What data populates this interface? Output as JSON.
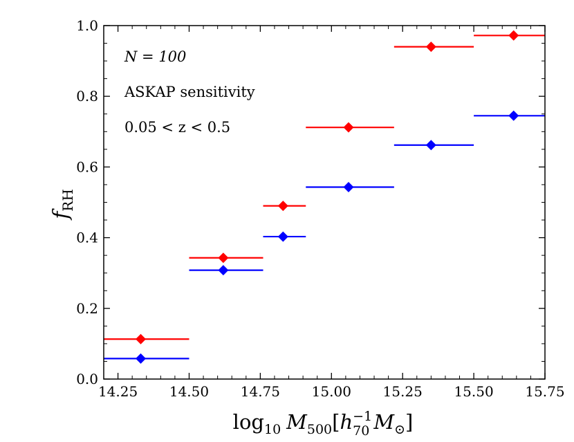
{
  "chart_data": {
    "type": "scatter",
    "xlabel_parts": {
      "prefix": "log",
      "sub": "10",
      "var": "M",
      "var_sub": "500",
      "bracket_open": "[",
      "h": "h",
      "h_sup": "−1",
      "h_sub": "70",
      "m": "M",
      "m_sub": "⊙",
      "bracket_close": "]"
    },
    "ylabel_parts": {
      "main": "f",
      "sub": "RH"
    },
    "xlim": [
      14.2,
      15.75
    ],
    "ylim": [
      0.0,
      1.0
    ],
    "xticks": [
      14.25,
      14.5,
      14.75,
      15.0,
      15.25,
      15.5,
      15.75
    ],
    "xtick_labels": [
      "14.25",
      "14.50",
      "14.75",
      "15.00",
      "15.25",
      "15.50",
      "15.75"
    ],
    "yticks": [
      0.0,
      0.2,
      0.4,
      0.6,
      0.8,
      1.0
    ],
    "ytick_labels": [
      "0.0",
      "0.2",
      "0.4",
      "0.6",
      "0.8",
      "1.0"
    ],
    "annotations": [
      "N = 100",
      "ASKAP sensitivity",
      "0.05 < z < 0.5"
    ],
    "series": [
      {
        "name": "red",
        "color": "#ff0000",
        "marker": "diamond",
        "points": [
          {
            "x": 14.33,
            "y": 0.113,
            "xmin": 14.2,
            "xmax": 14.5
          },
          {
            "x": 14.62,
            "y": 0.343,
            "xmin": 14.5,
            "xmax": 14.76
          },
          {
            "x": 14.83,
            "y": 0.49,
            "xmin": 14.76,
            "xmax": 14.91
          },
          {
            "x": 15.06,
            "y": 0.712,
            "xmin": 14.91,
            "xmax": 15.22
          },
          {
            "x": 15.35,
            "y": 0.94,
            "xmin": 15.22,
            "xmax": 15.5
          },
          {
            "x": 15.64,
            "y": 0.972,
            "xmin": 15.5,
            "xmax": 15.75
          }
        ]
      },
      {
        "name": "blue",
        "color": "#0000ff",
        "marker": "diamond",
        "points": [
          {
            "x": 14.33,
            "y": 0.058,
            "xmin": 14.2,
            "xmax": 14.5
          },
          {
            "x": 14.62,
            "y": 0.308,
            "xmin": 14.5,
            "xmax": 14.76
          },
          {
            "x": 14.83,
            "y": 0.403,
            "xmin": 14.76,
            "xmax": 14.91
          },
          {
            "x": 15.06,
            "y": 0.543,
            "xmin": 14.91,
            "xmax": 15.22
          },
          {
            "x": 15.35,
            "y": 0.662,
            "xmin": 15.22,
            "xmax": 15.5
          },
          {
            "x": 15.64,
            "y": 0.745,
            "xmin": 15.5,
            "xmax": 15.75
          }
        ]
      }
    ]
  }
}
